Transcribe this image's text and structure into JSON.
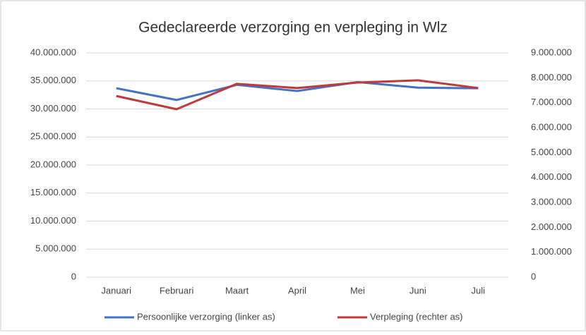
{
  "chart_data": {
    "type": "line",
    "title": "Gedeclareerde verzorging en verpleging in Wlz",
    "categories": [
      "Januari",
      "Februari",
      "Maart",
      "April",
      "Mei",
      "Juni",
      "Juli"
    ],
    "series": [
      {
        "name": "Persoonlijke verzorging (linker as)",
        "color": "#4472c4",
        "axis": "y",
        "values": [
          33700000,
          31600000,
          34300000,
          33200000,
          34800000,
          33800000,
          33700000
        ]
      },
      {
        "name": "Verpleging (rechter as)",
        "color": "#c0393b",
        "axis": "y2",
        "values": [
          7270000,
          6740000,
          7760000,
          7590000,
          7810000,
          7900000,
          7590000
        ]
      }
    ],
    "ylim": [
      0,
      40000000
    ],
    "yticks": [
      0,
      {
        "value": 5000000,
        "label": "5.000.000"
      },
      {
        "value": 10000000,
        "label": "10.000.000"
      },
      {
        "value": 15000000,
        "label": "15.000.000"
      },
      {
        "value": 20000000,
        "label": "20.000.000"
      },
      {
        "value": 25000000,
        "label": "25.000.000"
      },
      {
        "value": 30000000,
        "label": "30.000.000"
      },
      {
        "value": 35000000,
        "label": "35.000.000"
      },
      {
        "value": 40000000,
        "label": "40.000.000"
      }
    ],
    "y2lim": [
      0,
      9000000
    ],
    "y2ticks": [
      0,
      {
        "value": 1000000,
        "label": "1.000.000"
      },
      {
        "value": 2000000,
        "label": "2.000.000"
      },
      {
        "value": 3000000,
        "label": "3.000.000"
      },
      {
        "value": 4000000,
        "label": "4.000.000"
      },
      {
        "value": 5000000,
        "label": "5.000.000"
      },
      {
        "value": 6000000,
        "label": "6.000.000"
      },
      {
        "value": 7000000,
        "label": "7.000.000"
      },
      {
        "value": 8000000,
        "label": "8.000.000"
      },
      {
        "value": 9000000,
        "label": "9.000.000"
      }
    ],
    "grid": true,
    "legend": "bottom"
  }
}
